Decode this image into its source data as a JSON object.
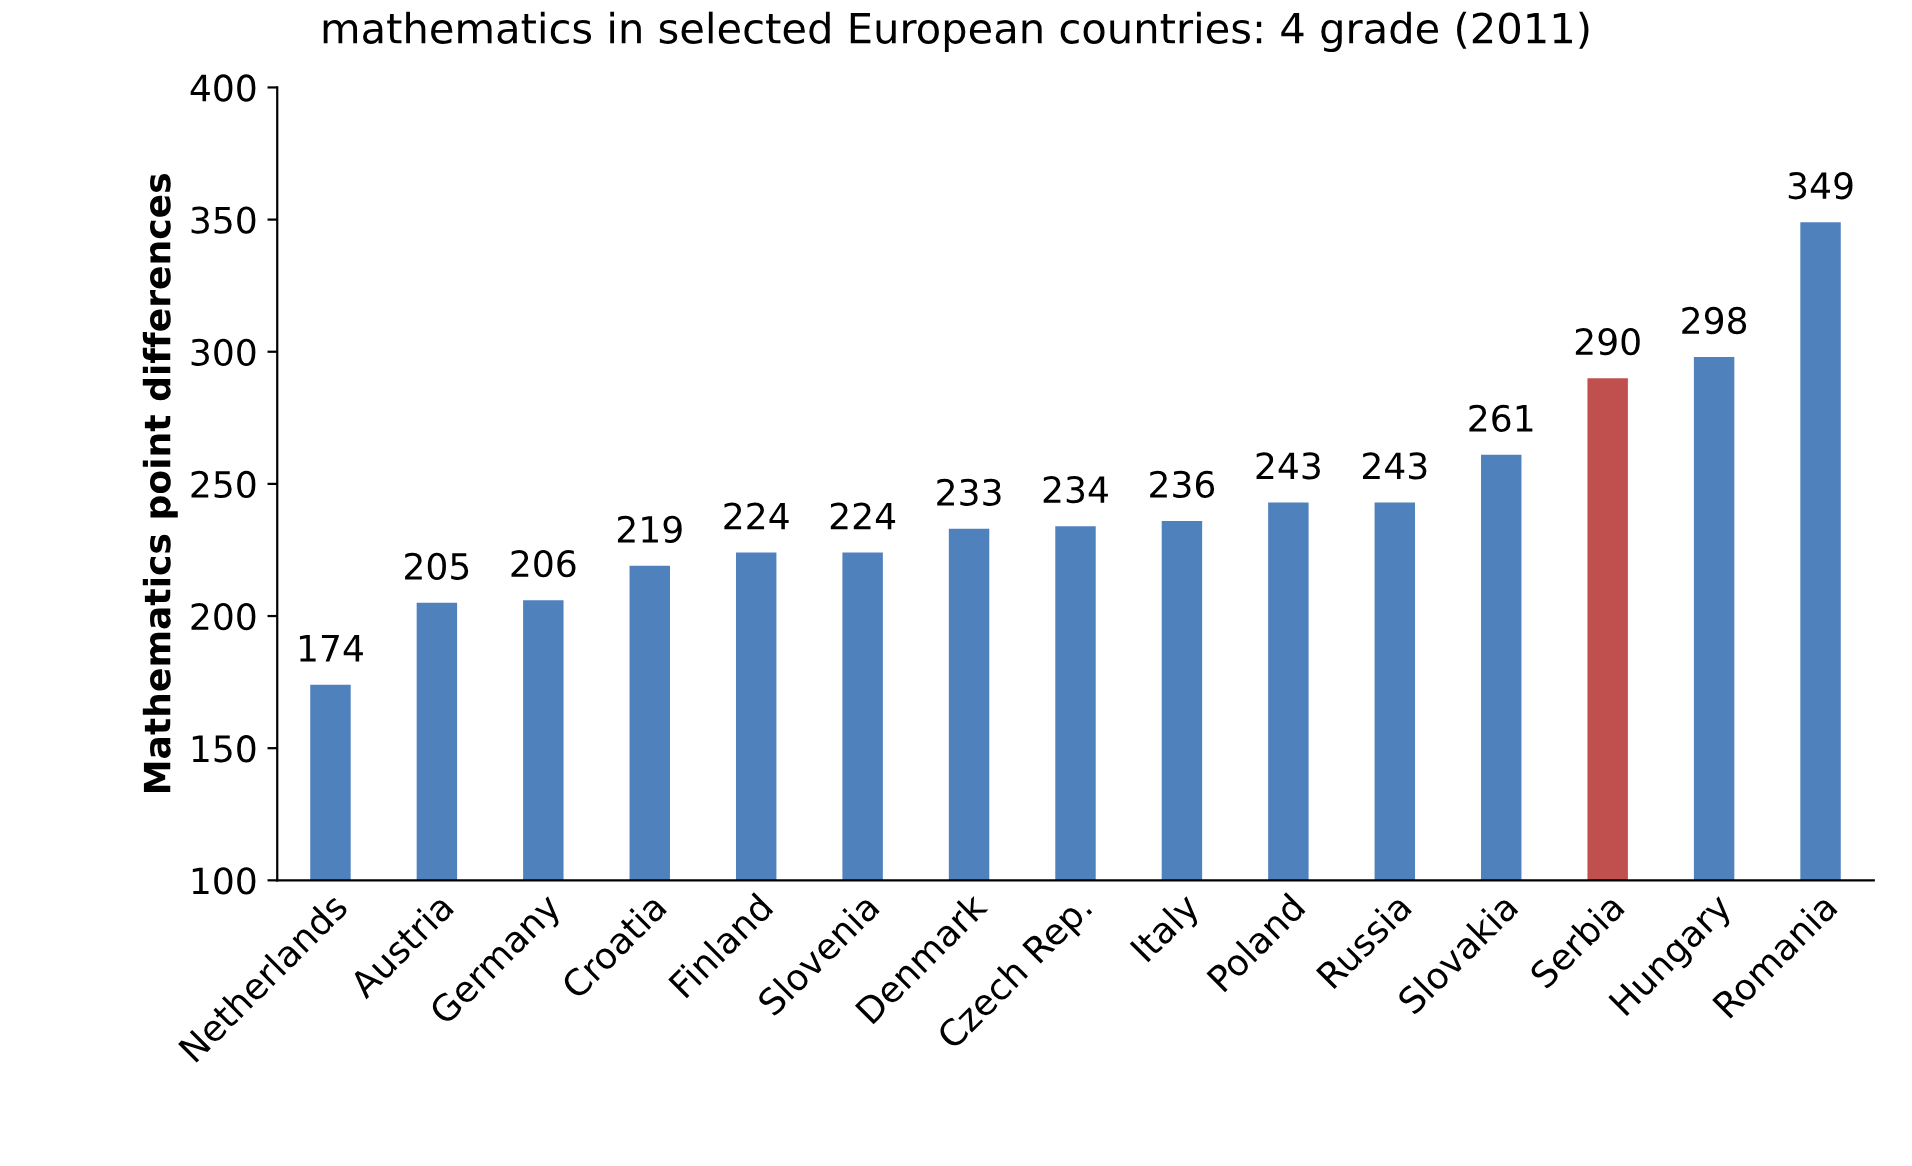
{
  "chart_data": {
    "type": "bar",
    "title": "mathematics in selected European countries: 4 grade (2011)",
    "ylabel": "Mathematics point differences",
    "categories": [
      "Netherlands",
      "Austria",
      "Germany",
      "Croatia",
      "Finland",
      "Slovenia",
      "Denmark",
      "Czech Rep.",
      "Italy",
      "Poland",
      "Russia",
      "Slovakia",
      "Serbia",
      "Hungary",
      "Romania"
    ],
    "values": [
      174,
      205,
      206,
      219,
      224,
      224,
      233,
      234,
      236,
      243,
      243,
      261,
      290,
      298,
      349
    ],
    "colors": [
      "#4f81bd",
      "#4f81bd",
      "#4f81bd",
      "#4f81bd",
      "#4f81bd",
      "#4f81bd",
      "#4f81bd",
      "#4f81bd",
      "#4f81bd",
      "#4f81bd",
      "#4f81bd",
      "#4f81bd",
      "#c0504d",
      "#4f81bd",
      "#4f81bd"
    ],
    "ylim": [
      100,
      400
    ],
    "yticks": [
      100,
      150,
      200,
      250,
      300,
      350,
      400
    ],
    "data_labels": true,
    "grid": false,
    "legend": false
  }
}
